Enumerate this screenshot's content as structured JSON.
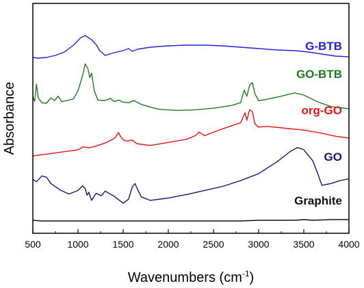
{
  "chart_data": {
    "type": "line",
    "title": "",
    "xlabel": "Wavenumbers (cm",
    "xlabel_sup": "-1",
    "xlabel_close": ")",
    "ylabel": "Absorbance",
    "xlim": [
      500,
      4000
    ],
    "x_ticks": [
      "500",
      "1000",
      "1500",
      "2000",
      "2500",
      "3000",
      "3500",
      "4000"
    ],
    "y_ticks": "none",
    "grid": false,
    "legend": "inline labels at right",
    "series": [
      {
        "name": "G-BTB",
        "color": "#1f1fdd",
        "x": [
          500,
          560,
          650,
          750,
          850,
          950,
          1030,
          1080,
          1150,
          1200,
          1240,
          1300,
          1400,
          1500,
          1560,
          1600,
          1660,
          1800,
          2000,
          2200,
          2400,
          2600,
          2800,
          3000,
          3200,
          3400,
          3550,
          3700,
          3850,
          4000
        ],
        "y": [
          0.04,
          0.03,
          0.04,
          0.07,
          0.12,
          0.22,
          0.33,
          0.36,
          0.3,
          0.23,
          0.14,
          0.07,
          0.11,
          0.14,
          0.17,
          0.13,
          0.16,
          0.19,
          0.21,
          0.22,
          0.22,
          0.21,
          0.19,
          0.17,
          0.15,
          0.14,
          0.12,
          0.09,
          0.06,
          0.05
        ]
      },
      {
        "name": "GO-BTB",
        "color": "#1f7a1f",
        "x": [
          500,
          520,
          540,
          560,
          600,
          650,
          700,
          740,
          780,
          820,
          880,
          950,
          1000,
          1050,
          1080,
          1110,
          1130,
          1150,
          1180,
          1220,
          1300,
          1360,
          1400,
          1450,
          1500,
          1560,
          1620,
          1700,
          1800,
          1900,
          2100,
          2300,
          2500,
          2700,
          2800,
          2840,
          2870,
          2900,
          2930,
          2960,
          3000,
          3050,
          3200,
          3400,
          3500,
          3650,
          3800,
          4000
        ],
        "y": [
          0.28,
          0.18,
          0.5,
          0.25,
          0.16,
          0.15,
          0.25,
          0.2,
          0.28,
          0.18,
          0.2,
          0.23,
          0.38,
          0.65,
          0.87,
          0.78,
          0.62,
          0.7,
          0.38,
          0.21,
          0.2,
          0.24,
          0.18,
          0.21,
          0.17,
          0.16,
          0.2,
          0.13,
          0.08,
          0.04,
          0.02,
          0.03,
          0.06,
          0.11,
          0.16,
          0.39,
          0.28,
          0.48,
          0.53,
          0.32,
          0.2,
          0.21,
          0.26,
          0.34,
          0.3,
          0.18,
          0.09,
          0.05
        ]
      },
      {
        "name": "org-GO",
        "color": "#ee1111",
        "x": [
          500,
          600,
          700,
          800,
          900,
          1000,
          1060,
          1120,
          1200,
          1300,
          1400,
          1450,
          1470,
          1500,
          1550,
          1600,
          1650,
          1800,
          2000,
          2200,
          2300,
          2340,
          2400,
          2600,
          2800,
          2850,
          2870,
          2900,
          2930,
          2960,
          3000,
          3100,
          3300,
          3500,
          3700,
          3850,
          4000
        ],
        "y": [
          0.0,
          0.02,
          0.04,
          0.06,
          0.08,
          0.1,
          0.15,
          0.13,
          0.16,
          0.21,
          0.28,
          0.38,
          0.32,
          0.26,
          0.24,
          0.26,
          0.2,
          0.17,
          0.22,
          0.27,
          0.33,
          0.39,
          0.33,
          0.44,
          0.54,
          0.7,
          0.58,
          0.75,
          0.72,
          0.52,
          0.47,
          0.48,
          0.45,
          0.42,
          0.37,
          0.32,
          0.29
        ]
      },
      {
        "name": "GO",
        "color": "#14147a",
        "x": [
          500,
          540,
          600,
          650,
          700,
          800,
          900,
          1000,
          1050,
          1080,
          1100,
          1120,
          1150,
          1200,
          1260,
          1300,
          1400,
          1460,
          1500,
          1560,
          1600,
          1630,
          1660,
          1700,
          1800,
          2000,
          2200,
          2400,
          2600,
          2800,
          3000,
          3200,
          3350,
          3430,
          3500,
          3600,
          3650,
          3700,
          3800,
          3900,
          4000
        ],
        "y": [
          0.42,
          0.38,
          0.48,
          0.46,
          0.35,
          0.24,
          0.17,
          0.23,
          0.31,
          0.26,
          0.15,
          0.2,
          0.06,
          0.18,
          0.14,
          0.22,
          0.13,
          0.06,
          0.01,
          0.08,
          0.29,
          0.35,
          0.25,
          0.12,
          0.06,
          0.1,
          0.16,
          0.23,
          0.3,
          0.4,
          0.52,
          0.72,
          0.9,
          0.97,
          0.93,
          0.74,
          0.54,
          0.32,
          0.35,
          0.4,
          0.43
        ]
      },
      {
        "name": "Graphite",
        "color": "#111111",
        "x": [
          500,
          600,
          800,
          1000,
          1200,
          1400,
          1600,
          1800,
          2000,
          2200,
          2400,
          2600,
          2800,
          3000,
          3200,
          3400,
          3500,
          3600,
          3800,
          4000
        ],
        "y": [
          0.01,
          0.0,
          0.0,
          0.0,
          0.0,
          0.0,
          0.0,
          0.0,
          0.0,
          0.0,
          0.0,
          0.0,
          0.0,
          0.01,
          0.01,
          0.01,
          0.02,
          0.01,
          0.02,
          0.02
        ]
      }
    ]
  }
}
